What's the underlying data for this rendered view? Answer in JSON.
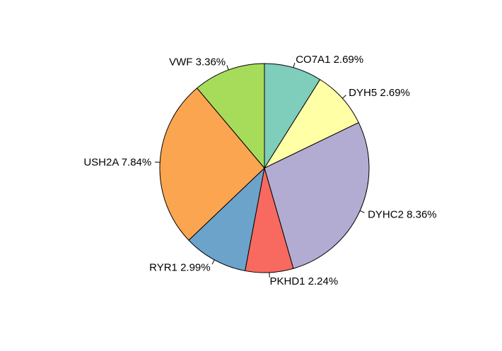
{
  "chart_data": {
    "type": "pie",
    "start_angle_deg": 90,
    "direction": "clockwise",
    "slices": [
      {
        "label": "CO7A1 2.69%",
        "value": 2.69,
        "color": "#7FCDBB"
      },
      {
        "label": "DYH5 2.69%",
        "value": 2.69,
        "color": "#FFFFA6"
      },
      {
        "label": "DYHC2 8.36%",
        "value": 8.36,
        "color": "#B2ABD2"
      },
      {
        "label": "PKHD1 2.24%",
        "value": 2.24,
        "color": "#F8695F"
      },
      {
        "label": "RYR1 2.99%",
        "value": 2.99,
        "color": "#6BA3CB"
      },
      {
        "label": "USH2A 7.84%",
        "value": 7.84,
        "color": "#FCA550"
      },
      {
        "label": "VWF 3.36%",
        "value": 3.36,
        "color": "#A7DC5B"
      }
    ]
  }
}
